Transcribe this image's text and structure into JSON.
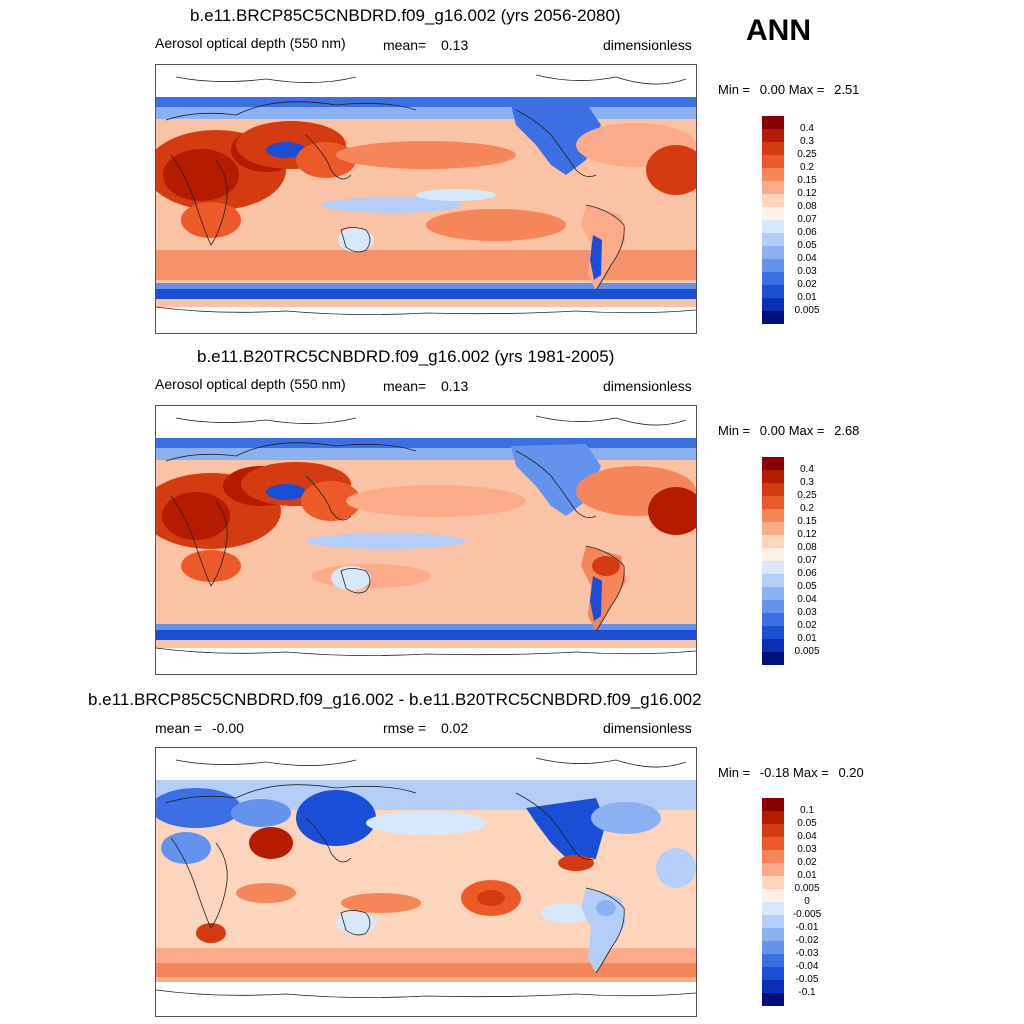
{
  "season": "ANN",
  "panels": [
    {
      "title": "b.e11.BRCP85C5CNBDRD.f09_g16.002 (yrs 2056-2080)",
      "variable": "Aerosol optical depth (550 nm)",
      "stat_label": "mean=",
      "stat_value": "0.13",
      "units": "dimensionless",
      "min_label": "Min =",
      "min_value": "0.00",
      "max_label": "Max =",
      "max_value": "2.51",
      "colorbar_labels": [
        "0.4",
        "0.3",
        "0.25",
        "0.2",
        "0.15",
        "0.12",
        "0.08",
        "0.07",
        "0.06",
        "0.05",
        "0.04",
        "0.03",
        "0.02",
        "0.01",
        "0.005"
      ],
      "colorbar_colors": [
        "#8a0000",
        "#b51b00",
        "#d43b10",
        "#ec5a2a",
        "#f5865a",
        "#fbab8a",
        "#fdd5bd",
        "#fdf0e4",
        "#d8e8fb",
        "#b5cef8",
        "#8cb1f2",
        "#6393ec",
        "#3b6fe3",
        "#1a4ed6",
        "#0c2fb8",
        "#00107a"
      ]
    },
    {
      "title": "b.e11.B20TRC5CNBDRD.f09_g16.002 (yrs 1981-2005)",
      "variable": "Aerosol optical depth (550 nm)",
      "stat_label": "mean=",
      "stat_value": "0.13",
      "units": "dimensionless",
      "min_label": "Min =",
      "min_value": "0.00",
      "max_label": "Max =",
      "max_value": "2.68",
      "colorbar_labels": [
        "0.4",
        "0.3",
        "0.25",
        "0.2",
        "0.15",
        "0.12",
        "0.08",
        "0.07",
        "0.06",
        "0.05",
        "0.04",
        "0.03",
        "0.02",
        "0.01",
        "0.005"
      ],
      "colorbar_colors": [
        "#8a0000",
        "#b51b00",
        "#d43b10",
        "#ec5a2a",
        "#f5865a",
        "#fbab8a",
        "#fdd5bd",
        "#fdf0e4",
        "#d8e8fb",
        "#b5cef8",
        "#8cb1f2",
        "#6393ec",
        "#3b6fe3",
        "#1a4ed6",
        "#0c2fb8",
        "#00107a"
      ]
    },
    {
      "title": "b.e11.BRCP85C5CNBDRD.f09_g16.002 - b.e11.B20TRC5CNBDRD.f09_g16.002",
      "mean_label": "mean =",
      "mean_value": "-0.00",
      "stat_label": "rmse =",
      "stat_value": "0.02",
      "units": "dimensionless",
      "min_label": "Min =",
      "min_value": "-0.18",
      "max_label": "Max =",
      "max_value": "0.20",
      "colorbar_labels": [
        "0.1",
        "0.05",
        "0.04",
        "0.03",
        "0.02",
        "0.01",
        "0.005",
        "0",
        "-0.005",
        "-0.01",
        "-0.02",
        "-0.03",
        "-0.04",
        "-0.05",
        "-0.1"
      ],
      "colorbar_colors": [
        "#8a0000",
        "#b51b00",
        "#d43b10",
        "#ec5a2a",
        "#f5865a",
        "#fbab8a",
        "#fdd5bd",
        "#fdf0e4",
        "#d8e8fb",
        "#b5cef8",
        "#8cb1f2",
        "#6393ec",
        "#3b6fe3",
        "#1a4ed6",
        "#0c2fb8",
        "#00107a"
      ]
    }
  ]
}
